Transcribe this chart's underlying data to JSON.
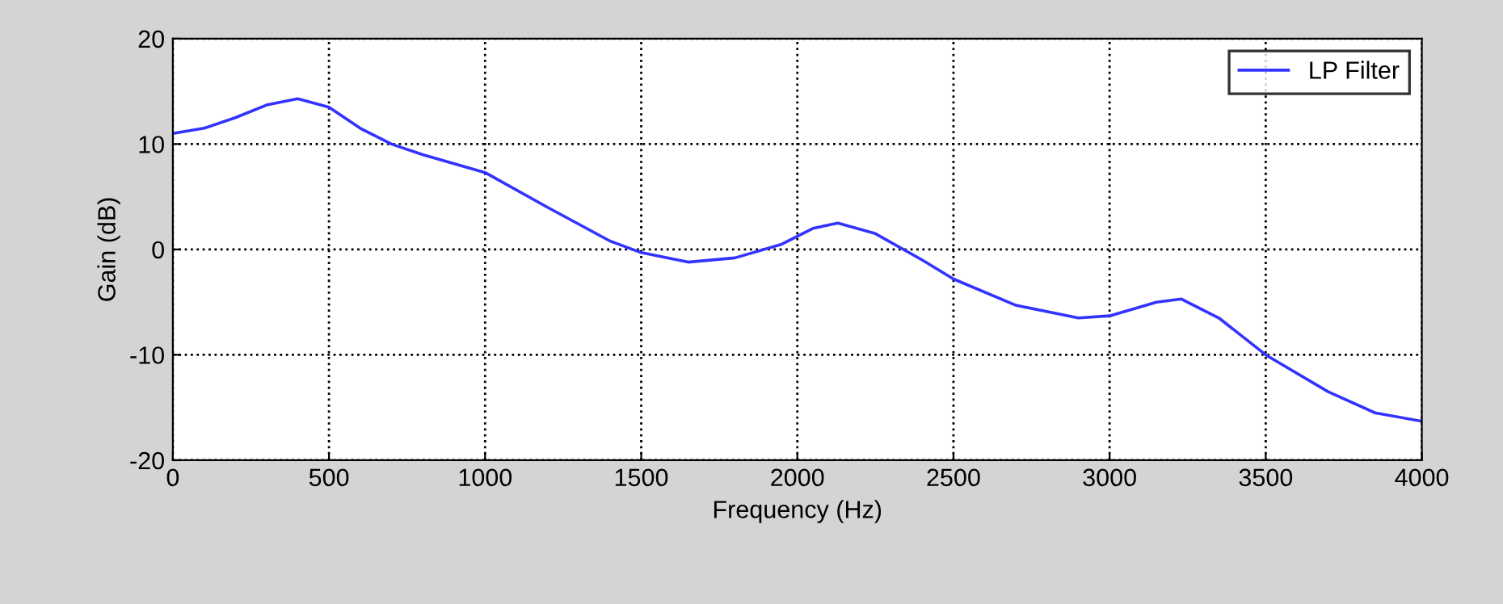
{
  "chart_data": {
    "type": "line",
    "xlabel": "Frequency (Hz)",
    "ylabel": "Gain (dB)",
    "xlim": [
      0,
      4000
    ],
    "ylim": [
      -20,
      20
    ],
    "xticks": [
      0,
      500,
      1000,
      1500,
      2000,
      2500,
      3000,
      3500,
      4000
    ],
    "yticks": [
      -20,
      -10,
      0,
      10,
      20
    ],
    "grid": true,
    "legend": "top right",
    "line_style": "solid",
    "marker": "none",
    "series": [
      {
        "name": "LP Filter",
        "color": "#3333ff",
        "x": [
          0,
          100,
          200,
          300,
          400,
          500,
          600,
          700,
          800,
          1000,
          1200,
          1400,
          1500,
          1650,
          1800,
          1950,
          2050,
          2130,
          2250,
          2400,
          2500,
          2700,
          2900,
          3000,
          3150,
          3230,
          3350,
          3500,
          3700,
          3850,
          4000
        ],
        "values": [
          11,
          11.5,
          12.5,
          13.7,
          14.3,
          13.5,
          11.5,
          10,
          9,
          7.3,
          4,
          0.8,
          -0.3,
          -1.2,
          -0.8,
          0.5,
          2,
          2.5,
          1.5,
          -1,
          -2.8,
          -5.3,
          -6.5,
          -6.3,
          -5,
          -4.7,
          -6.5,
          -10,
          -13.5,
          -15.5,
          -16.3
        ]
      }
    ]
  }
}
